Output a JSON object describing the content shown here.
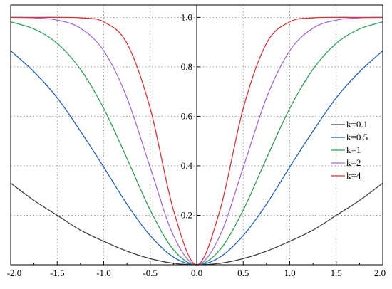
{
  "chart_data": {
    "type": "line",
    "title": "",
    "xlabel": "",
    "ylabel": "",
    "xlim": [
      -2.0,
      2.0
    ],
    "ylim": [
      0.0,
      1.05
    ],
    "x_ticks": [
      -2.0,
      -1.5,
      -1.0,
      -0.5,
      0.0,
      0.5,
      1.0,
      1.5,
      2.0
    ],
    "x_tick_labels": [
      "-2.0",
      "-1.5",
      "-1.0",
      "-0.5",
      "0.0",
      "0.5",
      "1.0",
      "1.5",
      "2.0"
    ],
    "y_ticks": [
      0.2,
      0.4,
      0.6,
      0.8,
      1.0
    ],
    "y_tick_labels": [
      "0.2",
      "0.4",
      "0.6",
      "0.8",
      "1.0"
    ],
    "grid": "dotted",
    "legend_position": "right",
    "x": [
      -2.0,
      -1.75,
      -1.5,
      -1.25,
      -1.0,
      -0.75,
      -0.5,
      -0.25,
      0.0,
      0.25,
      0.5,
      0.75,
      1.0,
      1.25,
      1.5,
      1.75,
      2.0
    ],
    "series": [
      {
        "name": "k=0.1",
        "color": "#404040",
        "values": [
          0.33,
          0.26,
          0.2,
          0.14,
          0.095,
          0.055,
          0.025,
          0.006,
          0.0,
          0.006,
          0.025,
          0.055,
          0.095,
          0.14,
          0.2,
          0.26,
          0.33
        ]
      },
      {
        "name": "k=0.5",
        "color": "#1f5fcc",
        "values": [
          0.865,
          0.78,
          0.675,
          0.54,
          0.395,
          0.245,
          0.118,
          0.031,
          0.0,
          0.031,
          0.118,
          0.245,
          0.395,
          0.54,
          0.675,
          0.78,
          0.865
        ]
      },
      {
        "name": "k=1",
        "color": "#2ca058",
        "values": [
          0.982,
          0.953,
          0.895,
          0.79,
          0.632,
          0.43,
          0.221,
          0.061,
          0.0,
          0.061,
          0.221,
          0.43,
          0.632,
          0.79,
          0.895,
          0.953,
          0.982
        ]
      },
      {
        "name": "k=2",
        "color": "#a36ad8",
        "values": [
          1.0,
          0.998,
          0.989,
          0.956,
          0.865,
          0.675,
          0.393,
          0.118,
          0.0,
          0.118,
          0.393,
          0.675,
          0.865,
          0.956,
          0.989,
          0.998,
          1.0
        ]
      },
      {
        "name": "k=4",
        "color": "#e03030",
        "values": [
          1.0,
          1.0,
          1.0,
          0.998,
          0.982,
          0.895,
          0.632,
          0.221,
          0.0,
          0.221,
          0.632,
          0.895,
          0.982,
          0.998,
          1.0,
          1.0,
          1.0
        ]
      }
    ]
  }
}
